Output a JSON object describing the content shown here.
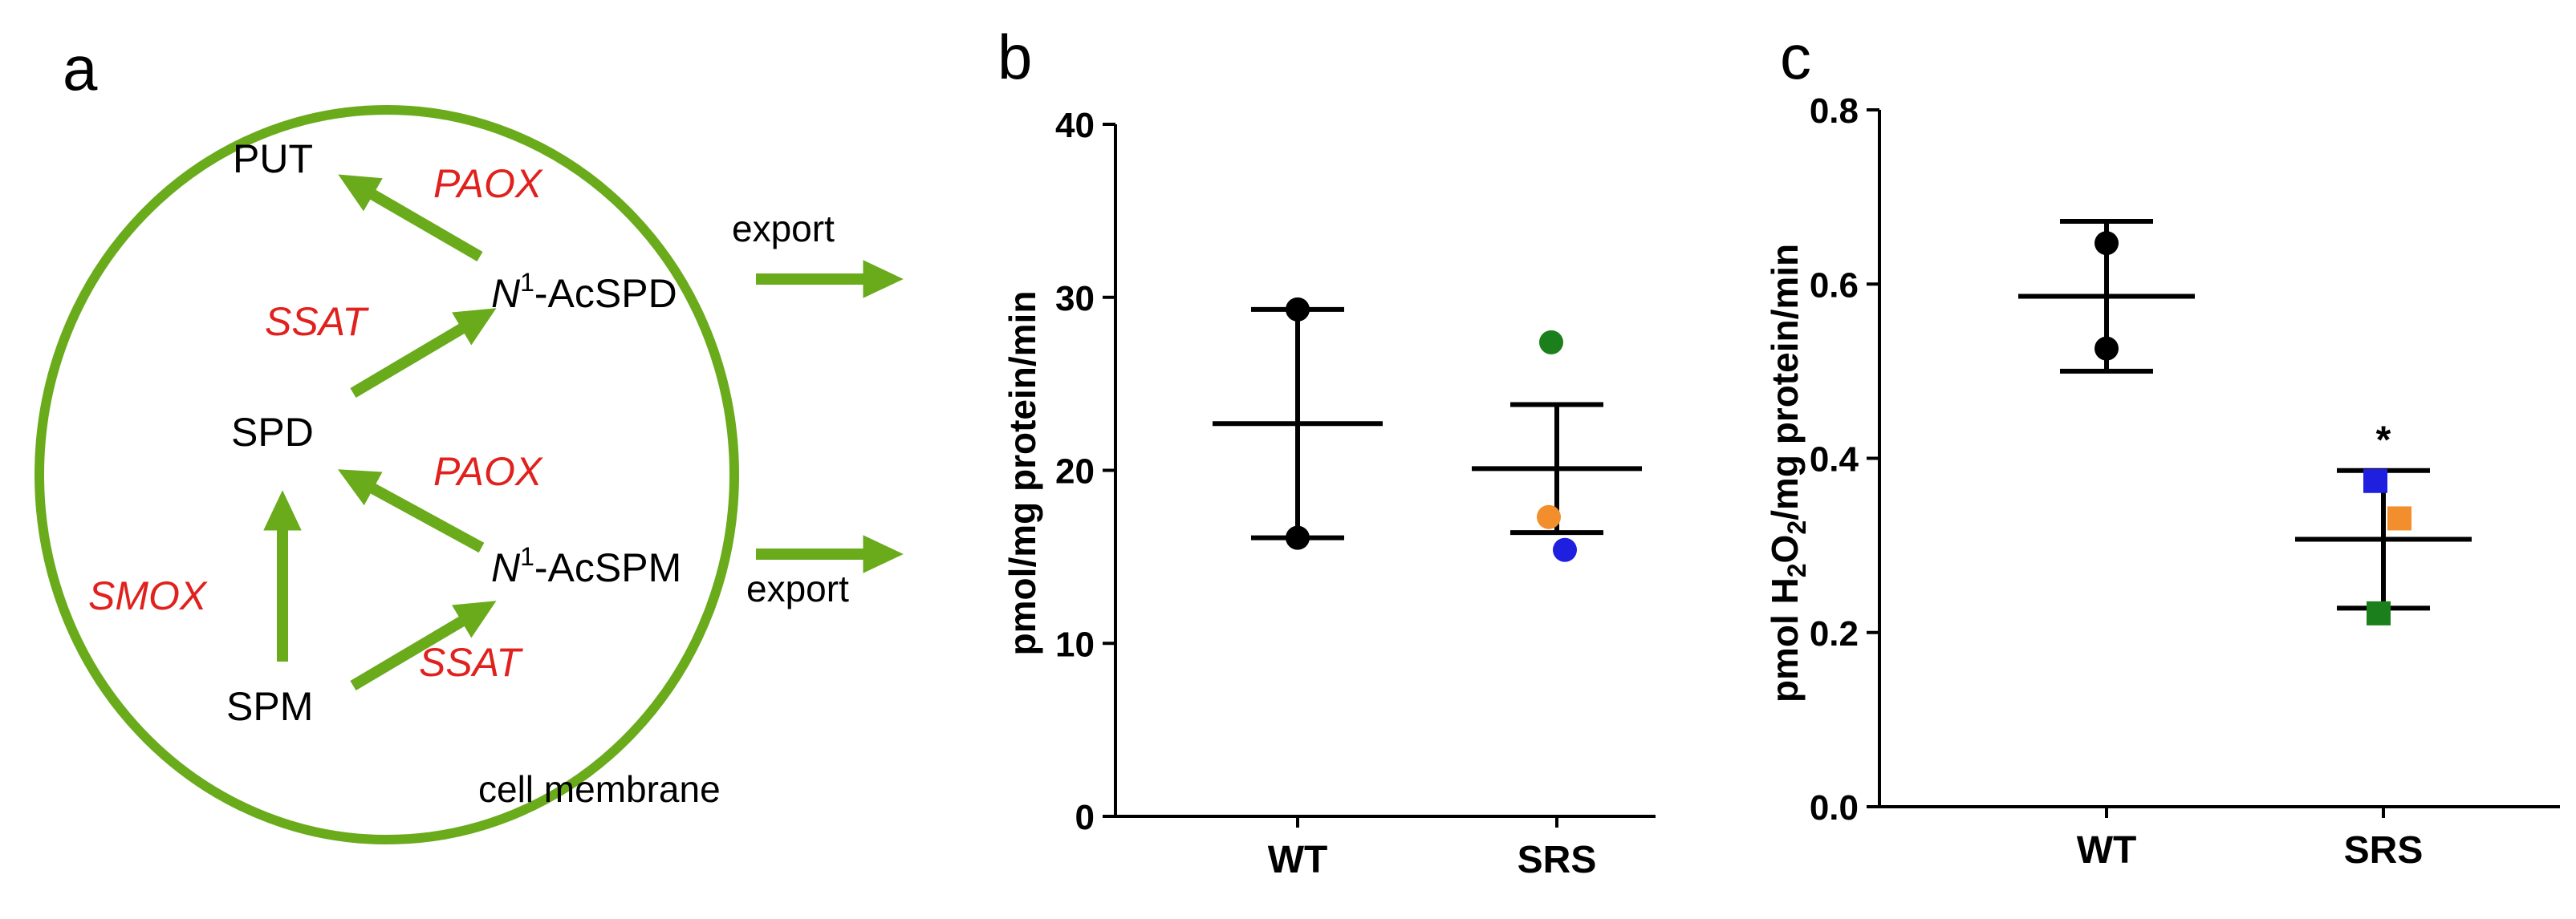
{
  "panels": {
    "a": "a",
    "b": "b",
    "c": "c"
  },
  "diagram": {
    "nodes": {
      "put": "PUT",
      "spd": "SPD",
      "spm": "SPM",
      "n1": "N",
      "sup": "1",
      "acspd": "-AcSPD",
      "acspm": "-AcSPM"
    },
    "enzymes": {
      "paox1": "PAOX",
      "ssat1": "SSAT",
      "paox2": "PAOX",
      "smox": "SMOX",
      "ssat2": "SSAT"
    },
    "export1": "export",
    "export2": "export",
    "membrane": "cell membrane",
    "colors": {
      "arrow": "#6aab1c",
      "enzyme": "#e0211d"
    }
  },
  "chart_data": [
    {
      "type": "scatter",
      "panel": "b",
      "title": "",
      "ylabel": "pmol/mg protein/min",
      "ylim": [
        0,
        40
      ],
      "yticks": [
        "0",
        "10",
        "20",
        "30",
        "40"
      ],
      "categories": [
        "WT",
        "SRS"
      ],
      "groups": [
        {
          "category": "WT",
          "mean": 22.7,
          "upper": 29.3,
          "lower": 16.1,
          "points": [
            {
              "value": 29.3,
              "color": "#000000",
              "shape": "circle"
            },
            {
              "value": 16.1,
              "color": "#000000",
              "shape": "circle"
            }
          ]
        },
        {
          "category": "SRS",
          "mean": 20.1,
          "upper": 23.8,
          "lower": 16.4,
          "points": [
            {
              "value": 27.4,
              "color": "#1b7f1b",
              "shape": "circle"
            },
            {
              "value": 17.3,
              "color": "#f28e2b",
              "shape": "circle"
            },
            {
              "value": 15.4,
              "color": "#1f1fe0",
              "shape": "circle"
            }
          ]
        }
      ]
    },
    {
      "type": "scatter",
      "panel": "c",
      "title": "",
      "ylabel_parts": [
        "pmol H",
        "2",
        "O",
        "2",
        "/mg protein/min"
      ],
      "ylim": [
        0.0,
        0.8
      ],
      "yticks": [
        "0.0",
        "0.2",
        "0.4",
        "0.6",
        "0.8"
      ],
      "categories": [
        "WT",
        "SRS"
      ],
      "annotation": "*",
      "groups": [
        {
          "category": "WT",
          "mean": 0.586,
          "upper": 0.672,
          "lower": 0.5,
          "points": [
            {
              "value": 0.647,
              "color": "#000000",
              "shape": "circle"
            },
            {
              "value": 0.526,
              "color": "#000000",
              "shape": "circle"
            }
          ]
        },
        {
          "category": "SRS",
          "mean": 0.307,
          "upper": 0.386,
          "lower": 0.228,
          "points": [
            {
              "value": 0.374,
              "color": "#1f1fe0",
              "shape": "square"
            },
            {
              "value": 0.331,
              "color": "#f28e2b",
              "shape": "square"
            },
            {
              "value": 0.222,
              "color": "#1b7f1b",
              "shape": "square"
            }
          ]
        }
      ]
    }
  ]
}
